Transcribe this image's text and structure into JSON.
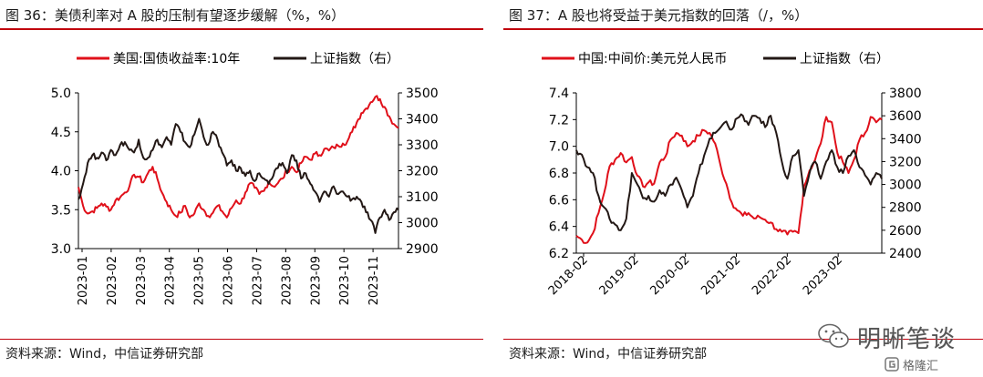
{
  "figures": [
    {
      "title": "图 36：美债利率对 A 股的压制有望逐步缓解（%，%）",
      "source": "资料来源：Wind，中信证券研究部"
    },
    {
      "title": "图 37：A 股也将受益于美元指数的回落（/，%）",
      "source": "资料来源：Wind，中信证券研究部"
    }
  ],
  "watermark": {
    "name": "明晰笔谈",
    "sub": "格隆汇"
  },
  "chart_data": [
    {
      "type": "line",
      "title": "",
      "x_ticks": [
        "2023-01",
        "2023-02",
        "2023-03",
        "2023-04",
        "2023-05",
        "2023-06",
        "2023-07",
        "2023-08",
        "2023-09",
        "2023-10",
        "2023-11"
      ],
      "y_left": {
        "ticks": [
          "3.0",
          "3.5",
          "4.0",
          "4.5",
          "5.0"
        ],
        "lim": [
          3.0,
          5.0
        ]
      },
      "y_right": {
        "ticks": [
          "2900",
          "3000",
          "3100",
          "3200",
          "3300",
          "3400",
          "3500"
        ],
        "lim": [
          2900,
          3500
        ]
      },
      "legend_position": "top",
      "series": [
        {
          "name": "美国:国债收益率:10年",
          "axis": "left",
          "color": "#e0101a",
          "values": [
            3.79,
            3.55,
            3.45,
            3.48,
            3.52,
            3.58,
            3.54,
            3.5,
            3.62,
            3.66,
            3.72,
            3.8,
            3.95,
            3.92,
            3.85,
            3.97,
            4.05,
            3.9,
            3.72,
            3.6,
            3.5,
            3.42,
            3.46,
            3.55,
            3.4,
            3.45,
            3.58,
            3.5,
            3.42,
            3.46,
            3.55,
            3.48,
            3.4,
            3.52,
            3.62,
            3.58,
            3.72,
            3.84,
            3.78,
            3.7,
            3.74,
            3.86,
            3.8,
            3.84,
            3.9,
            4.0,
            4.05,
            3.98,
            4.1,
            4.18,
            4.14,
            4.22,
            4.2,
            4.28,
            4.26,
            4.3,
            4.32,
            4.35,
            4.38,
            4.5,
            4.62,
            4.74,
            4.8,
            4.88,
            4.95,
            4.92,
            4.82,
            4.7,
            4.6,
            4.55
          ]
        },
        {
          "name": "上证指数（右）",
          "axis": "right",
          "color": "#231815",
          "values": [
            3090,
            3150,
            3230,
            3260,
            3250,
            3270,
            3240,
            3280,
            3260,
            3300,
            3310,
            3280,
            3270,
            3320,
            3250,
            3250,
            3280,
            3320,
            3290,
            3330,
            3300,
            3380,
            3350,
            3310,
            3290,
            3340,
            3400,
            3330,
            3300,
            3350,
            3320,
            3270,
            3220,
            3240,
            3200,
            3210,
            3180,
            3200,
            3160,
            3190,
            3170,
            3150,
            3180,
            3210,
            3230,
            3190,
            3260,
            3240,
            3170,
            3190,
            3150,
            3120,
            3080,
            3120,
            3100,
            3140,
            3110,
            3120,
            3100,
            3090,
            3100,
            3080,
            3040,
            3010,
            2960,
            3020,
            3050,
            3010,
            3040,
            3050
          ]
        }
      ]
    },
    {
      "type": "line",
      "title": "",
      "x_ticks": [
        "2018-02",
        "2019-02",
        "2020-02",
        "2021-02",
        "2022-02",
        "2023-02"
      ],
      "y_left": {
        "ticks": [
          "6.2",
          "6.4",
          "6.6",
          "6.8",
          "7.0",
          "7.2",
          "7.4"
        ],
        "lim": [
          6.2,
          7.4
        ]
      },
      "y_right": {
        "ticks": [
          "2400",
          "2600",
          "2800",
          "3000",
          "3200",
          "3400",
          "3600",
          "3800"
        ],
        "lim": [
          2400,
          3800
        ]
      },
      "legend_position": "top",
      "series": [
        {
          "name": "中国:中间价:美元兑人民币",
          "axis": "left",
          "color": "#e0101a",
          "values": [
            6.33,
            6.3,
            6.28,
            6.35,
            6.5,
            6.65,
            6.85,
            6.9,
            6.95,
            6.88,
            6.92,
            6.78,
            6.7,
            6.73,
            6.72,
            6.88,
            6.92,
            7.05,
            7.1,
            7.08,
            7.0,
            7.04,
            7.08,
            7.12,
            7.1,
            7.02,
            6.85,
            6.72,
            6.58,
            6.52,
            6.48,
            6.5,
            6.46,
            6.47,
            6.45,
            6.43,
            6.38,
            6.36,
            6.34,
            6.36,
            6.35,
            6.7,
            6.82,
            6.9,
            7.02,
            7.22,
            7.18,
            6.95,
            6.88,
            6.8,
            6.9,
            7.05,
            7.1,
            7.22,
            7.18,
            7.2
          ]
        },
        {
          "name": "上证指数（右）",
          "axis": "right",
          "color": "#231815",
          "values": [
            3300,
            3260,
            3150,
            3100,
            2900,
            2800,
            2700,
            2650,
            2600,
            2700,
            3100,
            3000,
            2880,
            2900,
            2850,
            2950,
            2900,
            3000,
            3060,
            2950,
            2800,
            2900,
            3100,
            3250,
            3400,
            3450,
            3500,
            3550,
            3480,
            3580,
            3600,
            3520,
            3600,
            3580,
            3500,
            3600,
            3450,
            3200,
            3050,
            3250,
            3300,
            2900,
            3100,
            3200,
            3050,
            3200,
            3300,
            3150,
            3100,
            3250,
            3300,
            3150,
            3080,
            3000,
            3100,
            3050
          ]
        }
      ]
    }
  ]
}
